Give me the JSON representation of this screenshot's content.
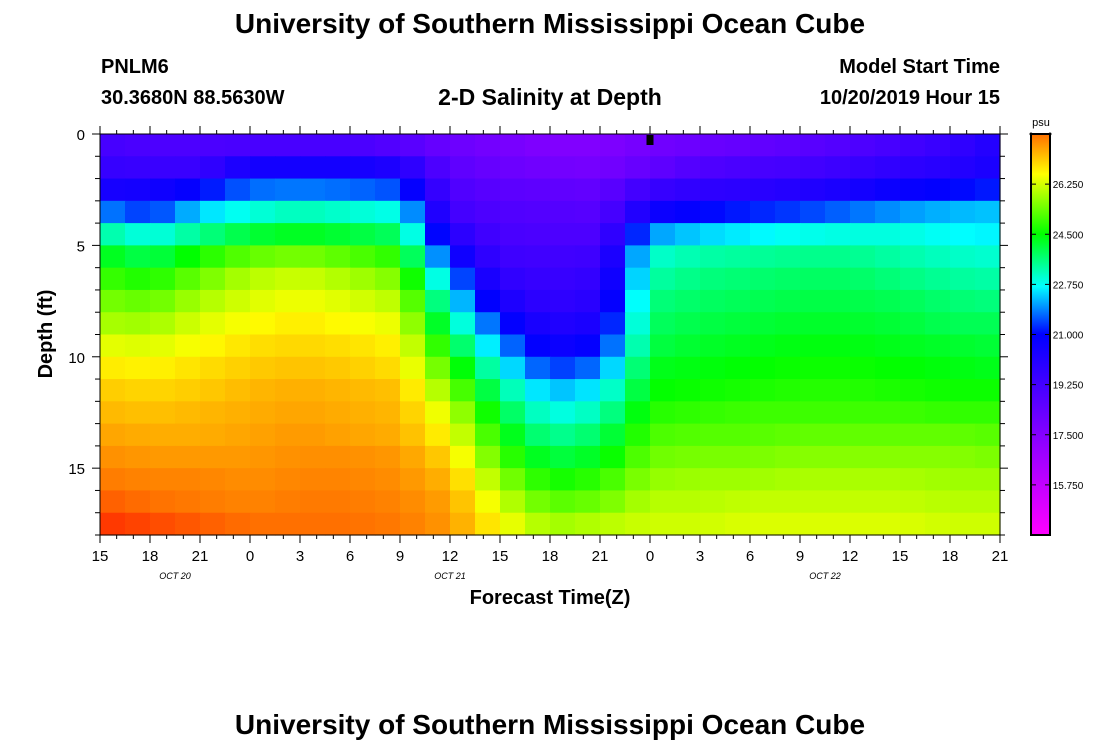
{
  "header": {
    "top_title": "University of Southern Mississippi Ocean Cube",
    "station_id": "PNLM6",
    "station_coords": "30.3680N 88.5630W",
    "plot_title": "2-D Salinity at Depth",
    "model_start_label": "Model Start Time",
    "model_start_value": "10/20/2019 Hour 15",
    "bottom_title": "University of Southern Mississippi Ocean Cube"
  },
  "chart_data": {
    "type": "heatmap",
    "title": "2-D Salinity at Depth",
    "xlabel": "Forecast Time(Z)",
    "ylabel": "Depth (ft)",
    "x_ticks": [
      "15",
      "18",
      "21",
      "0",
      "3",
      "6",
      "9",
      "12",
      "15",
      "18",
      "21",
      "0",
      "3",
      "6",
      "9",
      "12",
      "15",
      "18",
      "21"
    ],
    "date_labels": [
      {
        "text": "OCT 20",
        "tick_index": 1.5
      },
      {
        "text": "OCT 21",
        "tick_index": 7
      },
      {
        "text": "OCT 22",
        "tick_index": 14.5
      }
    ],
    "x_range_hours": [
      0,
      54
    ],
    "y_ticks": [
      0,
      5,
      10,
      15
    ],
    "y_range_ft": [
      0,
      18
    ],
    "depth_levels_ft": [
      0.5,
      1.5,
      2.5,
      3.5,
      4.5,
      5.5,
      6.5,
      7.5,
      8.5,
      9.5,
      10.5,
      11.5,
      12.5,
      13.5,
      14.5,
      15.5,
      16.5,
      17.5
    ],
    "time_nodes_hours": [
      0,
      3,
      6,
      9,
      12,
      15,
      18,
      21,
      24,
      27,
      30,
      33,
      36,
      39,
      42,
      45,
      48,
      51,
      54
    ],
    "salinity_psu": [
      [
        19.2,
        19.0,
        19.0,
        19.1,
        19.1,
        19.1,
        18.8,
        18.2,
        17.9,
        17.6,
        17.6,
        18.0,
        18.2,
        18.4,
        18.6,
        18.9,
        19.2,
        19.6,
        20.2
      ],
      [
        19.6,
        19.5,
        19.5,
        20.5,
        20.5,
        20.5,
        20.2,
        18.6,
        18.2,
        18.0,
        17.9,
        18.4,
        18.9,
        19.1,
        19.2,
        19.5,
        19.8,
        20.0,
        20.4
      ],
      [
        20.4,
        20.5,
        21.0,
        21.7,
        21.8,
        21.7,
        21.5,
        19.0,
        18.6,
        18.5,
        18.4,
        19.5,
        19.8,
        19.9,
        20.1,
        20.4,
        20.8,
        21.0,
        21.2
      ],
      [
        21.9,
        21.3,
        22.4,
        22.9,
        23.2,
        23.0,
        22.8,
        19.3,
        18.9,
        18.8,
        18.7,
        20.6,
        21.0,
        21.2,
        21.4,
        21.7,
        22.0,
        22.2,
        22.3
      ],
      [
        23.4,
        22.8,
        23.5,
        24.1,
        24.3,
        24.1,
        23.8,
        20.1,
        19.1,
        19.0,
        19.0,
        22.0,
        22.4,
        22.6,
        22.8,
        22.9,
        22.9,
        22.7,
        22.6
      ],
      [
        24.4,
        23.9,
        24.7,
        25.3,
        25.5,
        25.2,
        24.8,
        21.0,
        19.4,
        19.3,
        19.4,
        23.0,
        23.3,
        23.4,
        23.5,
        23.5,
        23.3,
        23.1,
        23.0
      ],
      [
        25.0,
        24.7,
        25.4,
        26.0,
        26.2,
        25.9,
        25.5,
        22.0,
        19.8,
        19.5,
        19.7,
        23.3,
        23.6,
        23.7,
        23.8,
        23.8,
        23.6,
        23.4,
        23.3
      ],
      [
        25.5,
        25.3,
        25.9,
        26.3,
        26.5,
        26.3,
        26.0,
        22.8,
        20.4,
        19.7,
        20.0,
        23.6,
        23.8,
        23.9,
        24.0,
        24.0,
        23.9,
        23.7,
        23.6
      ],
      [
        25.9,
        25.8,
        26.3,
        26.6,
        26.8,
        26.6,
        26.4,
        23.5,
        21.2,
        20.1,
        20.4,
        23.8,
        24.0,
        24.1,
        24.2,
        24.2,
        24.1,
        23.9,
        23.9
      ],
      [
        26.4,
        26.3,
        26.6,
        26.9,
        27.0,
        26.9,
        26.7,
        24.3,
        22.0,
        20.6,
        21.0,
        24.0,
        24.2,
        24.3,
        24.4,
        24.4,
        24.3,
        24.2,
        24.1
      ],
      [
        26.8,
        26.7,
        26.9,
        27.1,
        27.2,
        27.1,
        26.9,
        25.0,
        22.8,
        21.3,
        21.8,
        24.3,
        24.4,
        24.5,
        24.6,
        24.6,
        24.5,
        24.4,
        24.3
      ],
      [
        27.1,
        27.0,
        27.1,
        27.3,
        27.4,
        27.3,
        27.2,
        25.6,
        23.5,
        22.2,
        22.6,
        24.5,
        24.6,
        24.7,
        24.8,
        24.8,
        24.7,
        24.6,
        24.6
      ],
      [
        27.3,
        27.2,
        27.3,
        27.4,
        27.5,
        27.4,
        27.3,
        26.2,
        24.1,
        22.8,
        23.2,
        24.8,
        24.9,
        25.0,
        25.0,
        25.0,
        25.0,
        24.9,
        24.9
      ],
      [
        27.5,
        27.4,
        27.4,
        27.5,
        27.6,
        27.5,
        27.4,
        26.6,
        24.6,
        23.4,
        23.8,
        25.1,
        25.2,
        25.2,
        25.3,
        25.3,
        25.3,
        25.3,
        25.2
      ],
      [
        27.7,
        27.6,
        27.6,
        27.6,
        27.7,
        27.7,
        27.6,
        27.0,
        25.1,
        24.0,
        24.3,
        25.4,
        25.5,
        25.5,
        25.6,
        25.6,
        25.6,
        25.6,
        25.5
      ],
      [
        27.9,
        27.8,
        27.8,
        27.7,
        27.8,
        27.8,
        27.7,
        27.3,
        25.7,
        24.6,
        24.9,
        25.7,
        25.8,
        25.8,
        25.9,
        25.9,
        25.9,
        25.8,
        25.8
      ],
      [
        28.1,
        28.0,
        27.9,
        27.8,
        27.9,
        27.9,
        27.8,
        27.5,
        26.2,
        25.2,
        25.4,
        26.0,
        26.0,
        26.1,
        26.1,
        26.1,
        26.1,
        26.0,
        26.0
      ],
      [
        28.3,
        28.2,
        28.1,
        28.0,
        28.0,
        28.0,
        27.9,
        27.6,
        26.6,
        25.8,
        26.0,
        26.2,
        26.2,
        26.3,
        26.3,
        26.3,
        26.3,
        26.2,
        26.2
      ]
    ],
    "current_time_marker_hours": 33,
    "colorbar": {
      "unit": "psu",
      "min": 14.0,
      "max": 28.0,
      "tick_labels": [
        "26.250",
        "24.500",
        "22.750",
        "21.000",
        "19.250",
        "17.500",
        "15.750"
      ],
      "tick_values": [
        26.25,
        24.5,
        22.75,
        21.0,
        19.25,
        17.5,
        15.75
      ]
    }
  }
}
